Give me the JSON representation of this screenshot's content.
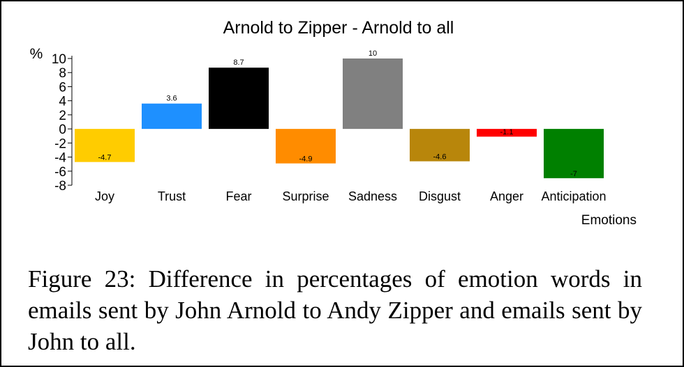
{
  "chart_data": {
    "type": "bar",
    "title": "Arnold to Zipper - Arnold to all",
    "ylabel": "%",
    "xlabel": "Emotions",
    "categories": [
      "Joy",
      "Trust",
      "Fear",
      "Surprise",
      "Sadness",
      "Disgust",
      "Anger",
      "Anticipation"
    ],
    "values": [
      -4.7,
      3.6,
      8.7,
      -4.9,
      10,
      -4.6,
      -1.1,
      -7
    ],
    "value_labels": [
      "-4.7",
      "3.6",
      "8.7",
      "-4.9",
      "10",
      "-4.6",
      "-1.1",
      "-7"
    ],
    "colors": [
      "#ffcc00",
      "#1e90ff",
      "#000000",
      "#ff8c00",
      "#808080",
      "#b8860b",
      "#ff0000",
      "#008000"
    ],
    "ylim": [
      -8,
      10
    ],
    "yticks": [
      10,
      8,
      6,
      4,
      2,
      0,
      -2,
      -4,
      -6,
      -8
    ],
    "grid": false,
    "legend": "none"
  },
  "caption": "Figure 23: Difference in percentages of emotion words in emails sent by John Arnold to Andy Zipper and emails sent by John to all."
}
